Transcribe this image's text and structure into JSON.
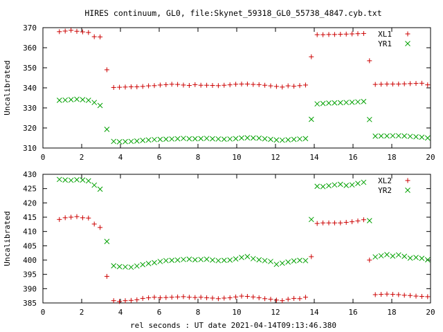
{
  "title": "HIRES continuum, GL0, file:Skynet_59318_GL0_55738_4847.cyb.txt",
  "xlabel": "rel seconds : UT date 2021-04-14T09:13:46.380",
  "colors": {
    "red": "#cc0000",
    "green": "#00a000"
  },
  "chart_data": [
    {
      "type": "scatter",
      "ylabel": "Uncalibrated",
      "xlim": [
        0,
        20
      ],
      "ylim": [
        310,
        370
      ],
      "xticks": [
        0,
        2,
        4,
        6,
        8,
        10,
        12,
        14,
        16,
        18,
        20
      ],
      "yticks": [
        310,
        320,
        330,
        340,
        350,
        360,
        370
      ],
      "legend_position": "top-right",
      "series": [
        {
          "name": "XL1",
          "marker": "plus",
          "color": "#cc0000",
          "x": [
            0.85,
            1.15,
            1.45,
            1.75,
            2.05,
            2.35,
            2.65,
            2.95,
            3.3,
            3.65,
            3.95,
            4.25,
            4.55,
            4.85,
            5.15,
            5.45,
            5.75,
            6.05,
            6.35,
            6.65,
            6.95,
            7.25,
            7.55,
            7.85,
            8.15,
            8.45,
            8.75,
            9.05,
            9.35,
            9.65,
            9.95,
            10.25,
            10.55,
            10.85,
            11.15,
            11.45,
            11.75,
            12.05,
            12.35,
            12.65,
            12.95,
            13.25,
            13.55,
            13.85,
            14.15,
            14.45,
            14.75,
            15.05,
            15.35,
            15.65,
            15.95,
            16.25,
            16.55,
            16.85,
            17.15,
            17.45,
            17.75,
            18.05,
            18.35,
            18.65,
            18.95,
            19.25,
            19.55,
            19.85
          ],
          "y": [
            368,
            368.3,
            368.7,
            368.2,
            367.9,
            367.6,
            365.5,
            365.4,
            349,
            340.2,
            340.3,
            340.4,
            340.5,
            340.5,
            340.7,
            341,
            341.1,
            341.4,
            341.6,
            341.8,
            341.7,
            341.4,
            341.2,
            341.6,
            341.3,
            341.3,
            341.2,
            341.1,
            341.3,
            341.5,
            341.8,
            341.9,
            341.9,
            341.7,
            341.6,
            341.3,
            341,
            340.7,
            340.4,
            341,
            340.8,
            341.1,
            341.4,
            355.5,
            366.5,
            366.5,
            366.6,
            366.6,
            366.7,
            366.8,
            366.9,
            367,
            367.1,
            353.5,
            341.7,
            341.8,
            341.9,
            341.9,
            341.9,
            342,
            342.1,
            342.2,
            342.3,
            341.5
          ]
        },
        {
          "name": "YR1",
          "marker": "cross",
          "color": "#00a000",
          "x": [
            0.85,
            1.15,
            1.45,
            1.75,
            2.05,
            2.35,
            2.65,
            2.95,
            3.3,
            3.65,
            3.95,
            4.25,
            4.55,
            4.85,
            5.15,
            5.45,
            5.75,
            6.05,
            6.35,
            6.65,
            6.95,
            7.25,
            7.55,
            7.85,
            8.15,
            8.45,
            8.75,
            9.05,
            9.35,
            9.65,
            9.95,
            10.25,
            10.55,
            10.85,
            11.15,
            11.45,
            11.75,
            12.05,
            12.35,
            12.65,
            12.95,
            13.25,
            13.55,
            13.85,
            14.15,
            14.45,
            14.75,
            15.05,
            15.35,
            15.65,
            15.95,
            16.25,
            16.55,
            16.85,
            17.15,
            17.45,
            17.75,
            18.05,
            18.35,
            18.65,
            18.95,
            19.25,
            19.55,
            19.85
          ],
          "y": [
            333.8,
            333.9,
            334.1,
            334.3,
            334.1,
            333.8,
            332.7,
            331.2,
            319.3,
            313.3,
            313.1,
            313.2,
            313.3,
            313.5,
            313.8,
            314,
            314.2,
            314.3,
            314.4,
            314.5,
            314.6,
            314.8,
            314.6,
            314.6,
            314.7,
            314.8,
            314.6,
            314.5,
            314.4,
            314.5,
            314.7,
            315,
            315.1,
            315,
            314.9,
            314.6,
            314.3,
            314,
            313.9,
            314.1,
            314.3,
            314.5,
            314.7,
            324.3,
            332,
            332.2,
            332.4,
            332.5,
            332.6,
            332.7,
            332.8,
            333,
            333.2,
            324.2,
            315.9,
            316,
            316,
            316.1,
            316.1,
            316,
            315.8,
            315.6,
            315.4,
            315
          ]
        }
      ]
    },
    {
      "type": "scatter",
      "ylabel": "Uncalibrated",
      "xlim": [
        0,
        20
      ],
      "ylim": [
        385,
        430
      ],
      "xticks": [
        0,
        2,
        4,
        6,
        8,
        10,
        12,
        14,
        16,
        18,
        20
      ],
      "yticks": [
        385,
        390,
        395,
        400,
        405,
        410,
        415,
        420,
        425,
        430
      ],
      "legend_position": "top-right",
      "series": [
        {
          "name": "XL2",
          "marker": "plus",
          "color": "#cc0000",
          "x": [
            0.85,
            1.15,
            1.45,
            1.75,
            2.05,
            2.35,
            2.65,
            2.95,
            3.3,
            3.65,
            3.95,
            4.25,
            4.55,
            4.85,
            5.15,
            5.45,
            5.75,
            6.05,
            6.35,
            6.65,
            6.95,
            7.25,
            7.55,
            7.85,
            8.15,
            8.45,
            8.75,
            9.05,
            9.35,
            9.65,
            9.95,
            10.25,
            10.55,
            10.85,
            11.15,
            11.45,
            11.75,
            12.05,
            12.35,
            12.65,
            12.95,
            13.25,
            13.55,
            13.85,
            14.15,
            14.45,
            14.75,
            15.05,
            15.35,
            15.65,
            15.95,
            16.25,
            16.55,
            16.85,
            17.15,
            17.45,
            17.75,
            18.05,
            18.35,
            18.65,
            18.95,
            19.25,
            19.55,
            19.85
          ],
          "y": [
            414.2,
            414.8,
            415,
            415.2,
            414.8,
            414.7,
            412.6,
            411.4,
            394.3,
            385.8,
            385.5,
            385.8,
            385.9,
            386.1,
            386.6,
            386.8,
            387,
            386.8,
            386.9,
            387,
            387.1,
            387.2,
            387,
            386.9,
            387,
            386.8,
            386.7,
            386.5,
            386.7,
            386.8,
            387.1,
            387.4,
            387.3,
            387.1,
            386.8,
            386.5,
            386.3,
            386,
            385.8,
            386.3,
            386.6,
            386.5,
            387,
            401.2,
            412.8,
            413,
            413,
            413,
            413,
            413.2,
            413.4,
            413.7,
            414.1,
            400,
            387.9,
            388,
            388.1,
            388,
            387.9,
            387.7,
            387.6,
            387.4,
            387.3,
            387.2
          ]
        },
        {
          "name": "YR2",
          "marker": "cross",
          "color": "#00a000",
          "x": [
            0.85,
            1.15,
            1.45,
            1.75,
            2.05,
            2.35,
            2.65,
            2.95,
            3.3,
            3.65,
            3.95,
            4.25,
            4.55,
            4.85,
            5.15,
            5.45,
            5.75,
            6.05,
            6.35,
            6.65,
            6.95,
            7.25,
            7.55,
            7.85,
            8.15,
            8.45,
            8.75,
            9.05,
            9.35,
            9.65,
            9.95,
            10.25,
            10.55,
            10.85,
            11.15,
            11.45,
            11.75,
            12.05,
            12.35,
            12.65,
            12.95,
            13.25,
            13.55,
            13.85,
            14.15,
            14.45,
            14.75,
            15.05,
            15.35,
            15.65,
            15.95,
            16.25,
            16.55,
            16.85,
            17.15,
            17.45,
            17.75,
            18.05,
            18.35,
            18.65,
            18.95,
            19.25,
            19.55,
            19.85
          ],
          "y": [
            428.2,
            428,
            427.9,
            428.1,
            428,
            427.7,
            426.2,
            424.8,
            406.5,
            398,
            397.7,
            397.6,
            397.5,
            397.9,
            398.4,
            398.8,
            399.1,
            399.5,
            399.8,
            399.9,
            400,
            400.2,
            400.3,
            400.1,
            400.2,
            400.3,
            400,
            399.8,
            399.9,
            400,
            400.4,
            400.9,
            401.2,
            400.5,
            400.1,
            399.8,
            399.5,
            398.5,
            398.9,
            399.3,
            399.7,
            399.9,
            399.8,
            414.2,
            425.8,
            425.7,
            426,
            426.3,
            426.5,
            426.1,
            426.3,
            426.8,
            427.2,
            413.8,
            401.1,
            401.5,
            401.9,
            401.4,
            401.8,
            401.3,
            400.7,
            400.9,
            400.6,
            400.1
          ]
        }
      ]
    }
  ]
}
